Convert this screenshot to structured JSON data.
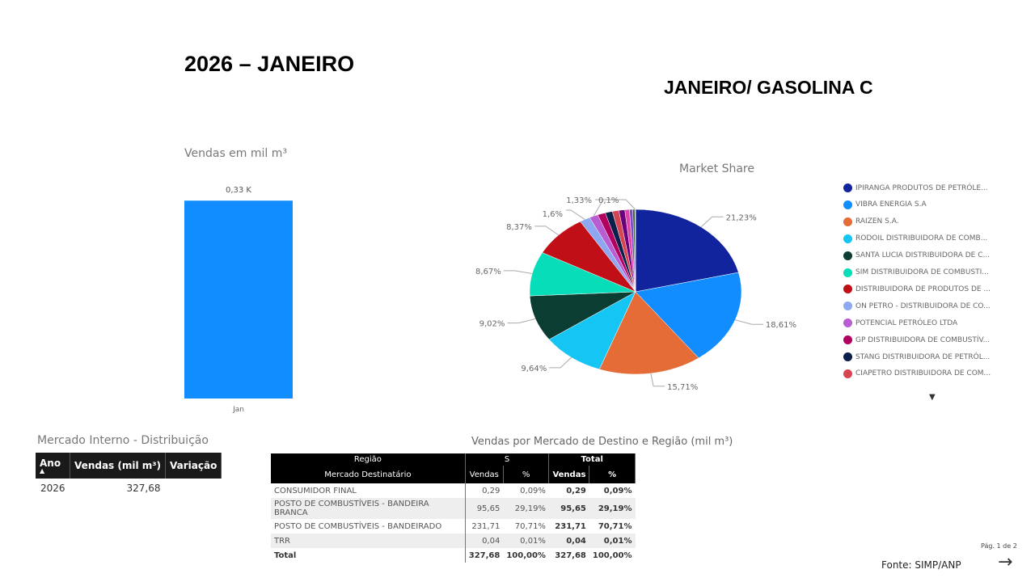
{
  "header": {
    "title": "2026 – JANEIRO",
    "subtitle": "JANEIRO/ GASOLINA C"
  },
  "chart_data": [
    {
      "type": "bar",
      "title": "Vendas  em mil m³",
      "categories": [
        "Jan"
      ],
      "values": [
        327.68
      ],
      "data_labels": [
        "0,33 K"
      ],
      "color": "#118DFF",
      "ylim": [
        0,
        340
      ]
    },
    {
      "type": "pie",
      "title": "Market Share",
      "legend_position": "right",
      "slices": [
        {
          "name": "IPIRANGA PRODUTOS DE PETRÓLE...",
          "value": 21.23,
          "label": "21,23%",
          "color": "#12239E"
        },
        {
          "name": "VIBRA ENERGIA S.A",
          "value": 18.61,
          "label": "18,61%",
          "color": "#118DFF"
        },
        {
          "name": "RAIZEN S.A.",
          "value": 15.71,
          "label": "15,71%",
          "color": "#E66C37"
        },
        {
          "name": "RODOIL DISTRIBUIDORA DE COMB...",
          "value": 9.64,
          "label": "9,64%",
          "color": "#15C6F4"
        },
        {
          "name": "SANTA LUCIA DISTRIBUIDORA DE C...",
          "value": 9.02,
          "label": "9,02%",
          "color": "#0B3D32"
        },
        {
          "name": "SIM DISTRIBUIDORA DE COMBUSTI...",
          "value": 8.67,
          "label": "8,67%",
          "color": "#07DDB8"
        },
        {
          "name": "DISTRIBUIDORA DE PRODUTOS DE ...",
          "value": 8.37,
          "label": "8,37%",
          "color": "#C00F16"
        },
        {
          "name": "ON PETRO - DISTRIBUIDORA DE CO...",
          "value": 1.6,
          "label": "1,6%",
          "color": "#8DA7F0"
        },
        {
          "name": "POTENCIAL PETRÓLEO LTDA",
          "value": 1.33,
          "label": "1,33%",
          "color": "#B85ED2"
        },
        {
          "name": "GP DISTRIBUIDORA DE COMBUSTÍV...",
          "value": 1.2,
          "label": "",
          "color": "#B1005F"
        },
        {
          "name": "STANG DISTRIBUIDORA DE PETRÓL...",
          "value": 1.1,
          "label": "",
          "color": "#0A1F4A"
        },
        {
          "name": "CIAPETRO DISTRIBUIDORA DE COM...",
          "value": 1.0,
          "label": "",
          "color": "#D64550"
        },
        {
          "name": "",
          "value": 0.9,
          "label": "",
          "color": "#6B007B"
        },
        {
          "name": "",
          "value": 0.7,
          "label": "",
          "color": "#E044A7"
        },
        {
          "name": "",
          "value": 0.5,
          "label": "",
          "color": "#744EC2"
        },
        {
          "name": "",
          "value": 0.32,
          "label": "",
          "color": "#3F5F2A"
        },
        {
          "name": "",
          "value": 0.1,
          "label": "0,1%",
          "color": "#A0A0A0"
        }
      ]
    }
  ],
  "legend_more": "▼",
  "mercado_interno": {
    "title": "Mercado Interno - Distribuição",
    "headers": [
      "Ano",
      "Vendas (mil m³)",
      "Variação"
    ],
    "sort_indicator": "▲",
    "rows": [
      [
        "2026",
        "327,68",
        ""
      ]
    ]
  },
  "vendas_destino": {
    "title": "Vendas por Mercado de Destino e Região (mil m³)",
    "header_row1": [
      "Região",
      "S",
      "Total"
    ],
    "header_row2": [
      "Mercado Destinatário",
      "Vendas",
      "%",
      "Vendas",
      "%"
    ],
    "rows": [
      [
        "CONSUMIDOR FINAL",
        "0,29",
        "0,09%",
        "0,29",
        "0,09%"
      ],
      [
        "POSTO DE COMBUSTÍVEIS - BANDEIRA BRANCA",
        "95,65",
        "29,19%",
        "95,65",
        "29,19%"
      ],
      [
        "POSTO DE COMBUSTÍVEIS - BANDEIRADO",
        "231,71",
        "70,71%",
        "231,71",
        "70,71%"
      ],
      [
        "TRR",
        "0,04",
        "0,01%",
        "0,04",
        "0,01%"
      ]
    ],
    "total": [
      "Total",
      "327,68",
      "100,00%",
      "327,68",
      "100,00%"
    ]
  },
  "footer": {
    "page": "Pág. 1 de 2",
    "source": "Fonte: SIMP/ANP",
    "next_icon": "arrow-right-icon"
  }
}
